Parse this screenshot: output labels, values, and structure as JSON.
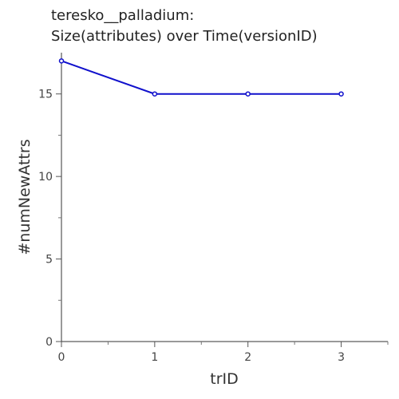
{
  "chart_data": {
    "type": "line",
    "title_lines": [
      "teresko__palladium:",
      "Size(attributes) over Time(versionID)"
    ],
    "xlabel": "trID",
    "ylabel": "#numNewAttrs",
    "x": [
      0,
      1,
      2,
      3
    ],
    "xlim": [
      0,
      3.5
    ],
    "ylim": [
      0,
      17.5
    ],
    "x_ticks": [
      0,
      1,
      2,
      3
    ],
    "x_minor_ticks": [
      0.5,
      1.5,
      2.5,
      3.5
    ],
    "y_ticks": [
      0,
      5,
      10,
      15
    ],
    "y_minor_ticks": [
      2.5,
      7.5,
      12.5
    ],
    "series": [
      {
        "values": [
          17,
          15,
          15,
          15
        ],
        "color": "#1010cc"
      }
    ],
    "grid": false,
    "legend": "none"
  }
}
